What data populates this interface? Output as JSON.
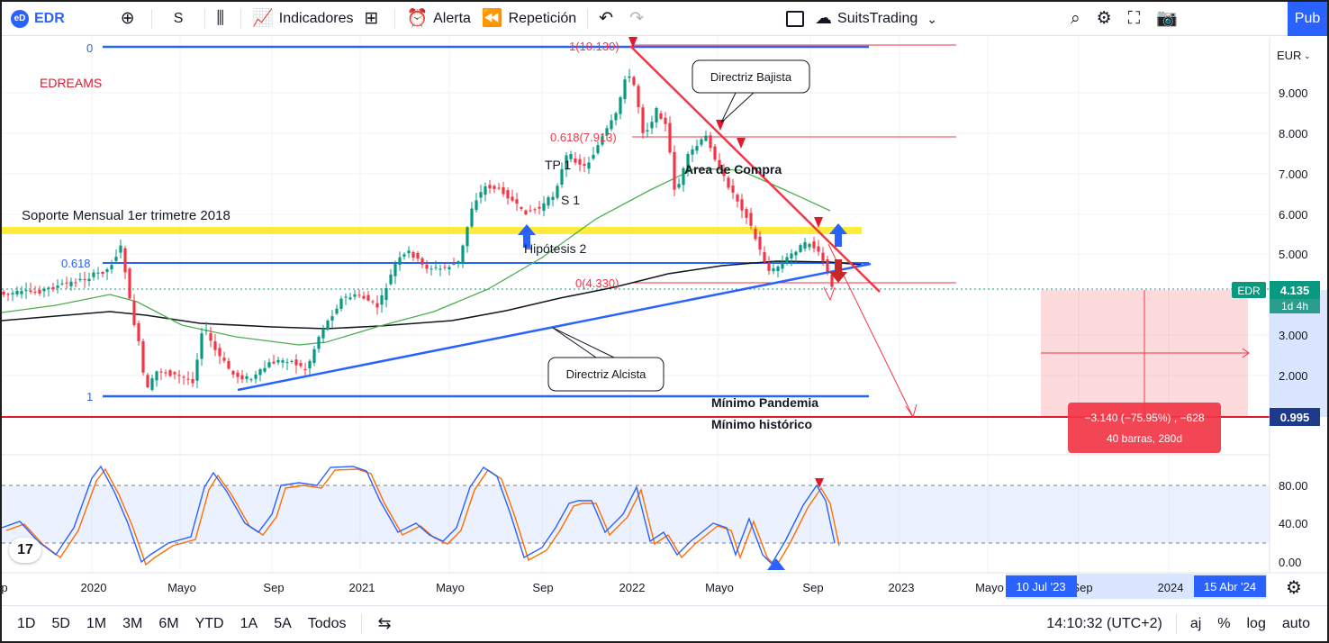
{
  "toolbar": {
    "symbol": "EDR",
    "symbol_badge": "eD",
    "add_icon": "plus-circle-icon",
    "interval": "S",
    "indicators": "Indicadores",
    "alert": "Alerta",
    "replay": "Repetición",
    "account": "SuitsTrading",
    "publish": "Pub"
  },
  "chart_data": {
    "type": "candlestick",
    "currency": "EUR",
    "currency_dropdown": "EUR",
    "price_ticks": [
      "9.000",
      "8.000",
      "7.000",
      "6.000",
      "5.000",
      "3.000",
      "2.000"
    ],
    "last_price": "4.135",
    "last_label": "EDR",
    "countdown": "1d 4h",
    "target_price": "0.995",
    "time_ticks": [
      "p",
      "2020",
      "Mayo",
      "Sep",
      "2021",
      "Mayo",
      "Sep",
      "2022",
      "Mayo",
      "Sep",
      "2023",
      "Mayo",
      "Sep",
      "2024"
    ],
    "range_start_label": "10 Jul '23",
    "range_end_label": "15 Abr '24",
    "oscillator_ticks": [
      "80.00",
      "40.00",
      "0.00"
    ],
    "annotations": {
      "title": "EDREAMS",
      "support": "Soporte Mensual 1er trimetre 2018",
      "fib_top_left": "0",
      "fib_top": "1(10.130)",
      "fib_618_upper": "0.618(7.913)",
      "fib_618_lower": "0.618",
      "fib_bottom_right": "0(4.330)",
      "fib_bottom_left": "1",
      "tp": "TP 1",
      "s1": "S 1",
      "area": "Area de Compra",
      "hipotesis": "Hipótesis 2",
      "bearish_callout": "Directriz Bajista",
      "bullish_callout": "Directriz Alcista",
      "pandemic_low": "Mínimo Pandemia",
      "historic_low": "Mínimo histórico",
      "measure_line1": "−3.140 (−75.95%) , −628",
      "measure_line2": "40 barras, 280d"
    },
    "colors": {
      "candle_up": "#089981",
      "candle_down": "#f23645",
      "ma_fast": "#4caf50",
      "ma_slow": "#131722",
      "support_band": "#ffeb3b",
      "trend_line": "#2962ff",
      "red_line": "#f23645",
      "stoch_k": "#2962ff",
      "stoch_d": "#ff6d00"
    }
  },
  "bottom": {
    "ranges": [
      "1D",
      "5D",
      "1M",
      "3M",
      "6M",
      "YTD",
      "1A",
      "5A",
      "Todos"
    ],
    "time": "14:10:32 (UTC+2)",
    "adj": "aj",
    "pct": "%",
    "log": "log",
    "auto": "auto"
  }
}
